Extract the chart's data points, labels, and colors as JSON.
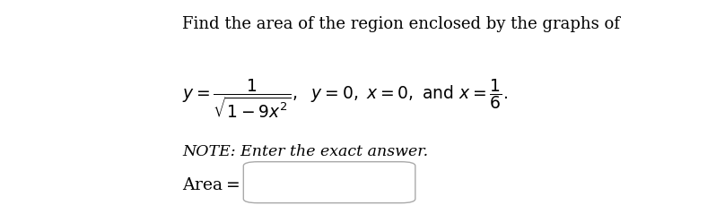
{
  "background_color": "#ffffff",
  "title_line": "Find the area of the region enclosed by the graphs of",
  "note_line": "NOTE: Enter the exact answer.",
  "text_color": "#000000",
  "box_color": "#aaaaaa",
  "font_size_title": 13.0,
  "font_size_math": 13.5,
  "font_size_note": 12.5,
  "font_size_answer": 13.5
}
